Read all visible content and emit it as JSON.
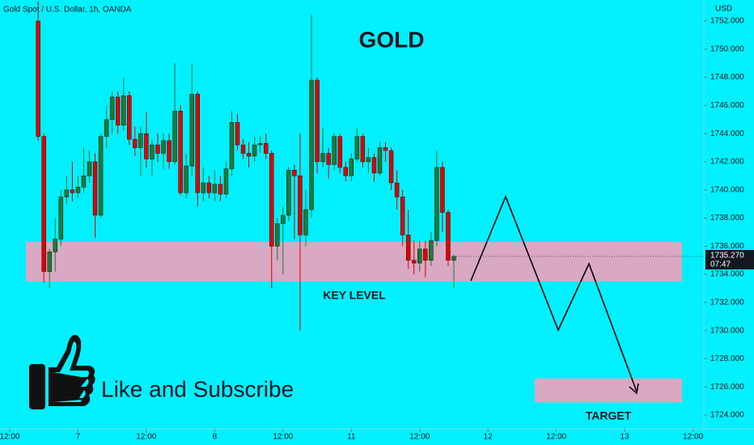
{
  "chart_data": {
    "type": "candlestick",
    "source": "Gold Spot / U.S. Dollar, 1h, OANDA",
    "currency": "USD",
    "title": "GOLD",
    "annotations": {
      "key_level": "KEY LEVEL",
      "target": "TARGET",
      "cta": "Like and Subscribe"
    },
    "up_color": "#1e7a34",
    "down_color": "#e00000",
    "x": [
      5,
      6,
      7,
      8,
      9,
      10,
      11,
      12,
      13,
      14,
      15,
      16,
      17,
      18,
      19,
      20,
      21,
      22,
      23,
      24,
      25,
      26,
      27,
      28,
      29,
      30,
      31,
      32,
      33,
      34,
      35,
      36,
      37,
      38,
      39,
      40,
      41,
      42,
      43,
      44,
      45,
      46,
      47,
      48,
      49,
      50,
      51,
      52,
      53,
      54,
      55,
      56,
      57,
      58,
      59,
      60,
      61,
      62,
      63,
      64,
      65,
      66,
      67,
      68,
      69,
      70,
      71,
      72,
      73,
      74,
      75,
      76,
      77,
      78
    ],
    "open": [
      1752,
      1743.8,
      1734.2,
      1735.6,
      1736.5,
      1739.5,
      1740,
      1739.8,
      1740.2,
      1741,
      1742,
      1738.2,
      1743.8,
      1745,
      1746.6,
      1744.6,
      1746.7,
      1743.6,
      1743,
      1744,
      1742.2,
      1743.2,
      1742.6,
      1743.5,
      1742,
      1745.6,
      1739.8,
      1741.7,
      1746.8,
      1739.8,
      1740.5,
      1739.8,
      1740.4,
      1739.7,
      1741.5,
      1744.8,
      1743.2,
      1742.6,
      1742.4,
      1743.2,
      1743.3,
      1742.6,
      1736,
      1737.6,
      1738.2,
      1741.4,
      1741,
      1736.8,
      1738.6,
      1747.8,
      1742,
      1742.6,
      1741.8,
      1743.8,
      1741.6,
      1741,
      1742.2,
      1743.8,
      1742,
      1742.3,
      1741.2,
      1743,
      1742.8,
      1740.5,
      1739.5,
      1736.8,
      1735,
      1734.8,
      1735.8,
      1735,
      1736.4,
      1741.6,
      1738.4,
      1735
    ],
    "high": [
      1753.4,
      1744,
      1735.8,
      1738,
      1740,
      1741,
      1742,
      1741,
      1743,
      1742.8,
      1742.6,
      1744,
      1746,
      1747,
      1747,
      1748,
      1747,
      1744.5,
      1744.5,
      1745.5,
      1743.6,
      1744,
      1744,
      1744,
      1749,
      1746,
      1742.6,
      1749,
      1747,
      1741.6,
      1741,
      1741.4,
      1741,
      1742,
      1745.6,
      1745.4,
      1743.6,
      1743.4,
      1743.8,
      1743.8,
      1744,
      1742.8,
      1738,
      1738.8,
      1741.6,
      1741.8,
      1744,
      1740,
      1752.5,
      1748,
      1744.4,
      1743,
      1744,
      1744,
      1742,
      1742.6,
      1744.4,
      1744,
      1743,
      1742.6,
      1743.4,
      1743.4,
      1743,
      1741.4,
      1740,
      1738.6,
      1736.4,
      1736.4,
      1736.4,
      1737,
      1742.8,
      1742,
      1738.6,
      1735.4
    ],
    "low": [
      1743.5,
      1733.4,
      1733,
      1734.2,
      1736,
      1739,
      1739.2,
      1739.4,
      1739.8,
      1740.5,
      1736.6,
      1738,
      1743,
      1744,
      1744,
      1744.2,
      1743.2,
      1742.4,
      1741,
      1741.6,
      1741,
      1742,
      1741.5,
      1741.5,
      1741.8,
      1739.6,
      1739.4,
      1741,
      1738.8,
      1739.2,
      1739.4,
      1739.2,
      1739.2,
      1739.4,
      1741,
      1742.8,
      1742.2,
      1741.6,
      1742,
      1742.6,
      1742.2,
      1733,
      1735,
      1734,
      1737.8,
      1736.5,
      1730,
      1736,
      1738,
      1741.2,
      1741.6,
      1740.8,
      1741.4,
      1741.2,
      1740.6,
      1740.6,
      1742,
      1741.6,
      1741.2,
      1740.6,
      1741,
      1742,
      1740,
      1738.6,
      1736,
      1734.4,
      1734,
      1734.2,
      1733.8,
      1734.6,
      1736,
      1737,
      1734.6,
      1733
    ],
    "close": [
      1743.8,
      1734.2,
      1735.6,
      1736.5,
      1739.5,
      1740,
      1739.8,
      1740.2,
      1741,
      1742,
      1738.2,
      1743.8,
      1745,
      1746.6,
      1744.6,
      1746.7,
      1743.6,
      1743,
      1744,
      1742.2,
      1743.2,
      1742.6,
      1743.5,
      1742,
      1745.6,
      1739.8,
      1741.7,
      1746.8,
      1739.8,
      1740.5,
      1739.8,
      1740.4,
      1739.7,
      1741.5,
      1744.8,
      1743.2,
      1742.6,
      1742.4,
      1743.2,
      1743.3,
      1742.6,
      1736,
      1737.6,
      1738.2,
      1741.4,
      1741,
      1736.8,
      1738.6,
      1747.8,
      1742,
      1742.6,
      1741.8,
      1743.8,
      1741.6,
      1741,
      1742.2,
      1743.8,
      1742,
      1742.3,
      1741.2,
      1743,
      1742.8,
      1740.5,
      1739.5,
      1736.8,
      1735,
      1734.8,
      1735.8,
      1735,
      1736.4,
      1741.6,
      1738.4,
      1735,
      1735.27
    ],
    "last_price": {
      "value": 1735.27,
      "label": "1735.270"
    },
    "countdown": "07:47",
    "key_level_zone": [
      1733.5,
      1736.3
    ],
    "target_zone": [
      1724.9,
      1726.6
    ],
    "xlim": [
      -1.7,
      121.9
    ],
    "ylim": [
      1724,
      1752
    ],
    "xticks": [
      {
        "value": 0,
        "label": "12:00"
      },
      {
        "value": 12,
        "label": "7"
      },
      {
        "value": 24,
        "label": "12:00"
      },
      {
        "value": 36,
        "label": "8"
      },
      {
        "value": 48,
        "label": "12:00"
      },
      {
        "value": 60,
        "label": "11"
      },
      {
        "value": 72,
        "label": "12:00"
      },
      {
        "value": 84,
        "label": "12"
      },
      {
        "value": 96,
        "label": "12:00"
      },
      {
        "value": 108,
        "label": "13"
      },
      {
        "value": 120,
        "label": "12:00"
      }
    ],
    "yticks": [
      {
        "value": 1724,
        "label": "1724.000"
      },
      {
        "value": 1726,
        "label": "1726.000"
      },
      {
        "value": 1728,
        "label": "1728.000"
      },
      {
        "value": 1730,
        "label": "1730.000"
      },
      {
        "value": 1732,
        "label": "1732.000"
      },
      {
        "value": 1734,
        "label": "1734.000"
      },
      {
        "value": 1736,
        "label": "1736.000"
      },
      {
        "value": 1738,
        "label": "1738.000"
      },
      {
        "value": 1740,
        "label": "1740.000"
      },
      {
        "value": 1742,
        "label": "1742.000"
      },
      {
        "value": 1744,
        "label": "1744.000"
      },
      {
        "value": 1746,
        "label": "1746.000"
      },
      {
        "value": 1748,
        "label": "1748.000"
      },
      {
        "value": 1750,
        "label": "1750.000"
      },
      {
        "value": 1752,
        "label": "1752.000"
      }
    ]
  }
}
